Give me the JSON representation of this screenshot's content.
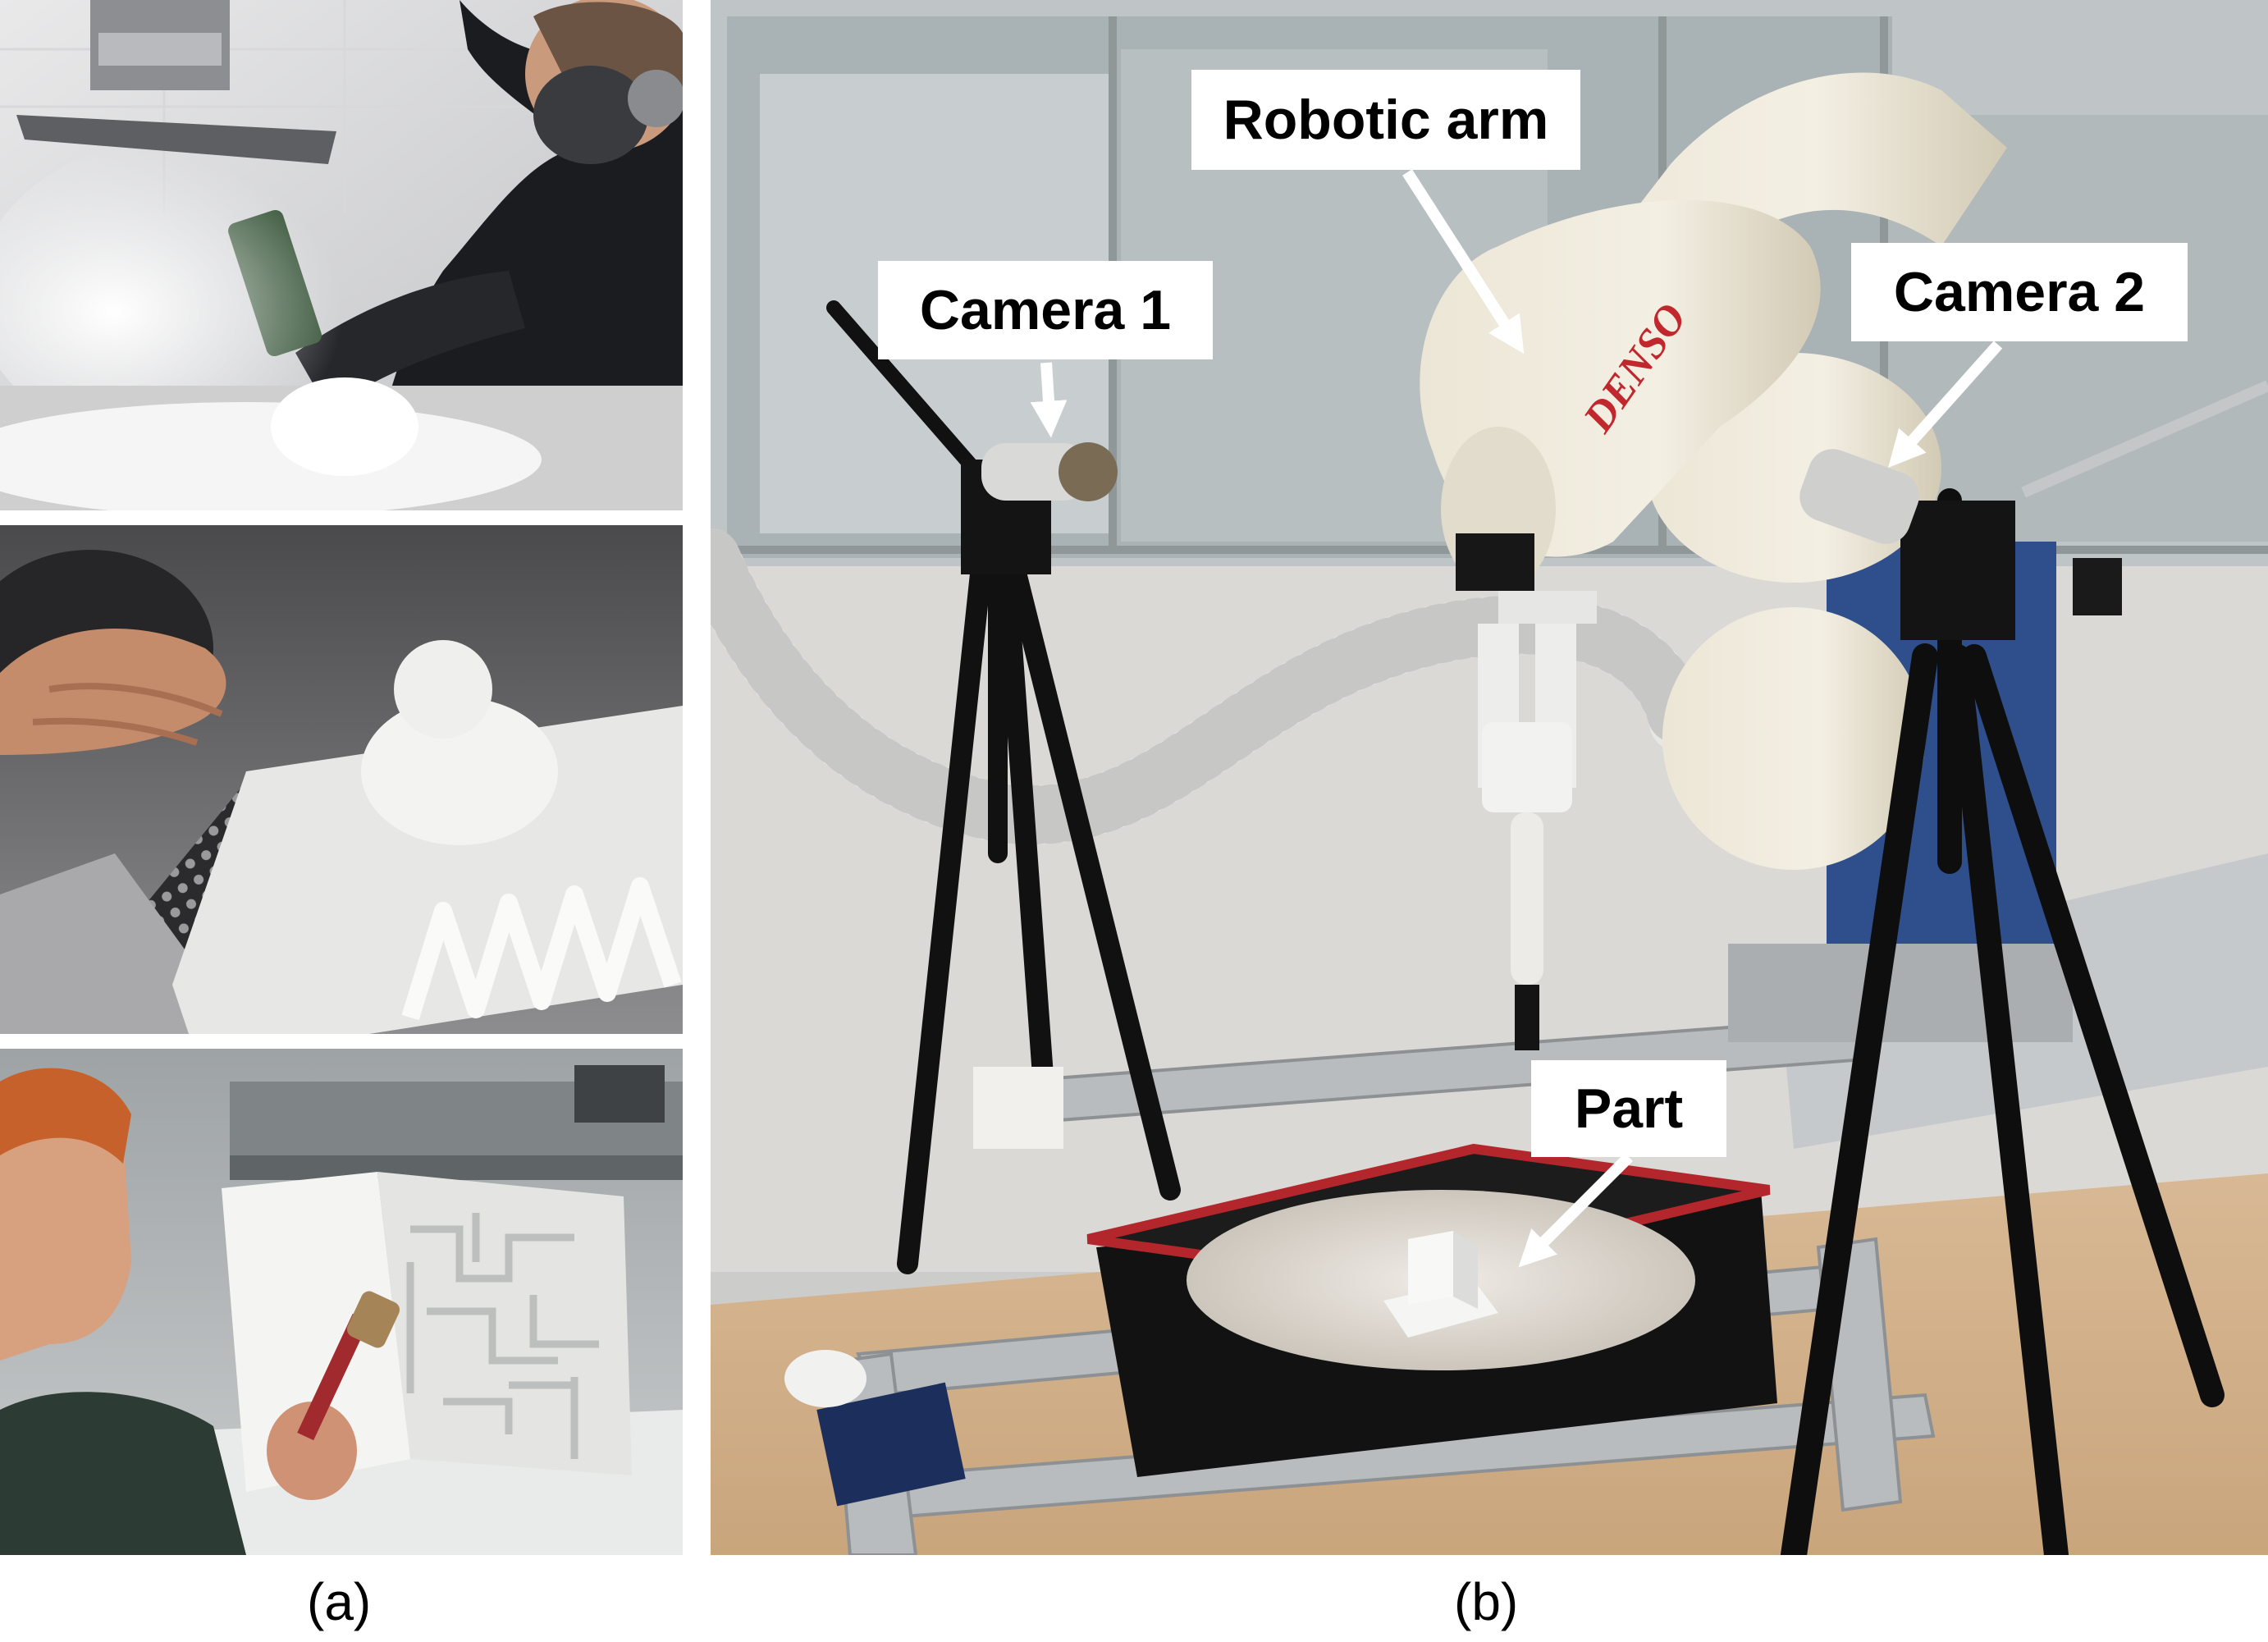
{
  "panels": {
    "a": {
      "caption": "(a)",
      "photos": [
        "Person in respirator brushing loose white powder off a printed part under a dust extractor",
        "Hand brushing white powder over a perforated metal tray, revealing a zigzag lattice part",
        "Person using a brush to clean powder from a white printed maze-like cube inside a printer"
      ]
    },
    "b": {
      "caption": "(b)",
      "labels": {
        "robotic_arm": "Robotic arm",
        "camera_1": "Camera 1",
        "camera_2": "Camera 2",
        "part": "Part"
      },
      "arm_brand": "DENSO"
    }
  },
  "colors": {
    "callout_bg": "#ffffff",
    "callout_text": "#000000",
    "arrow": "#ffffff",
    "arm_brand": "#c0282e",
    "tray_rim": "#b3262b"
  }
}
